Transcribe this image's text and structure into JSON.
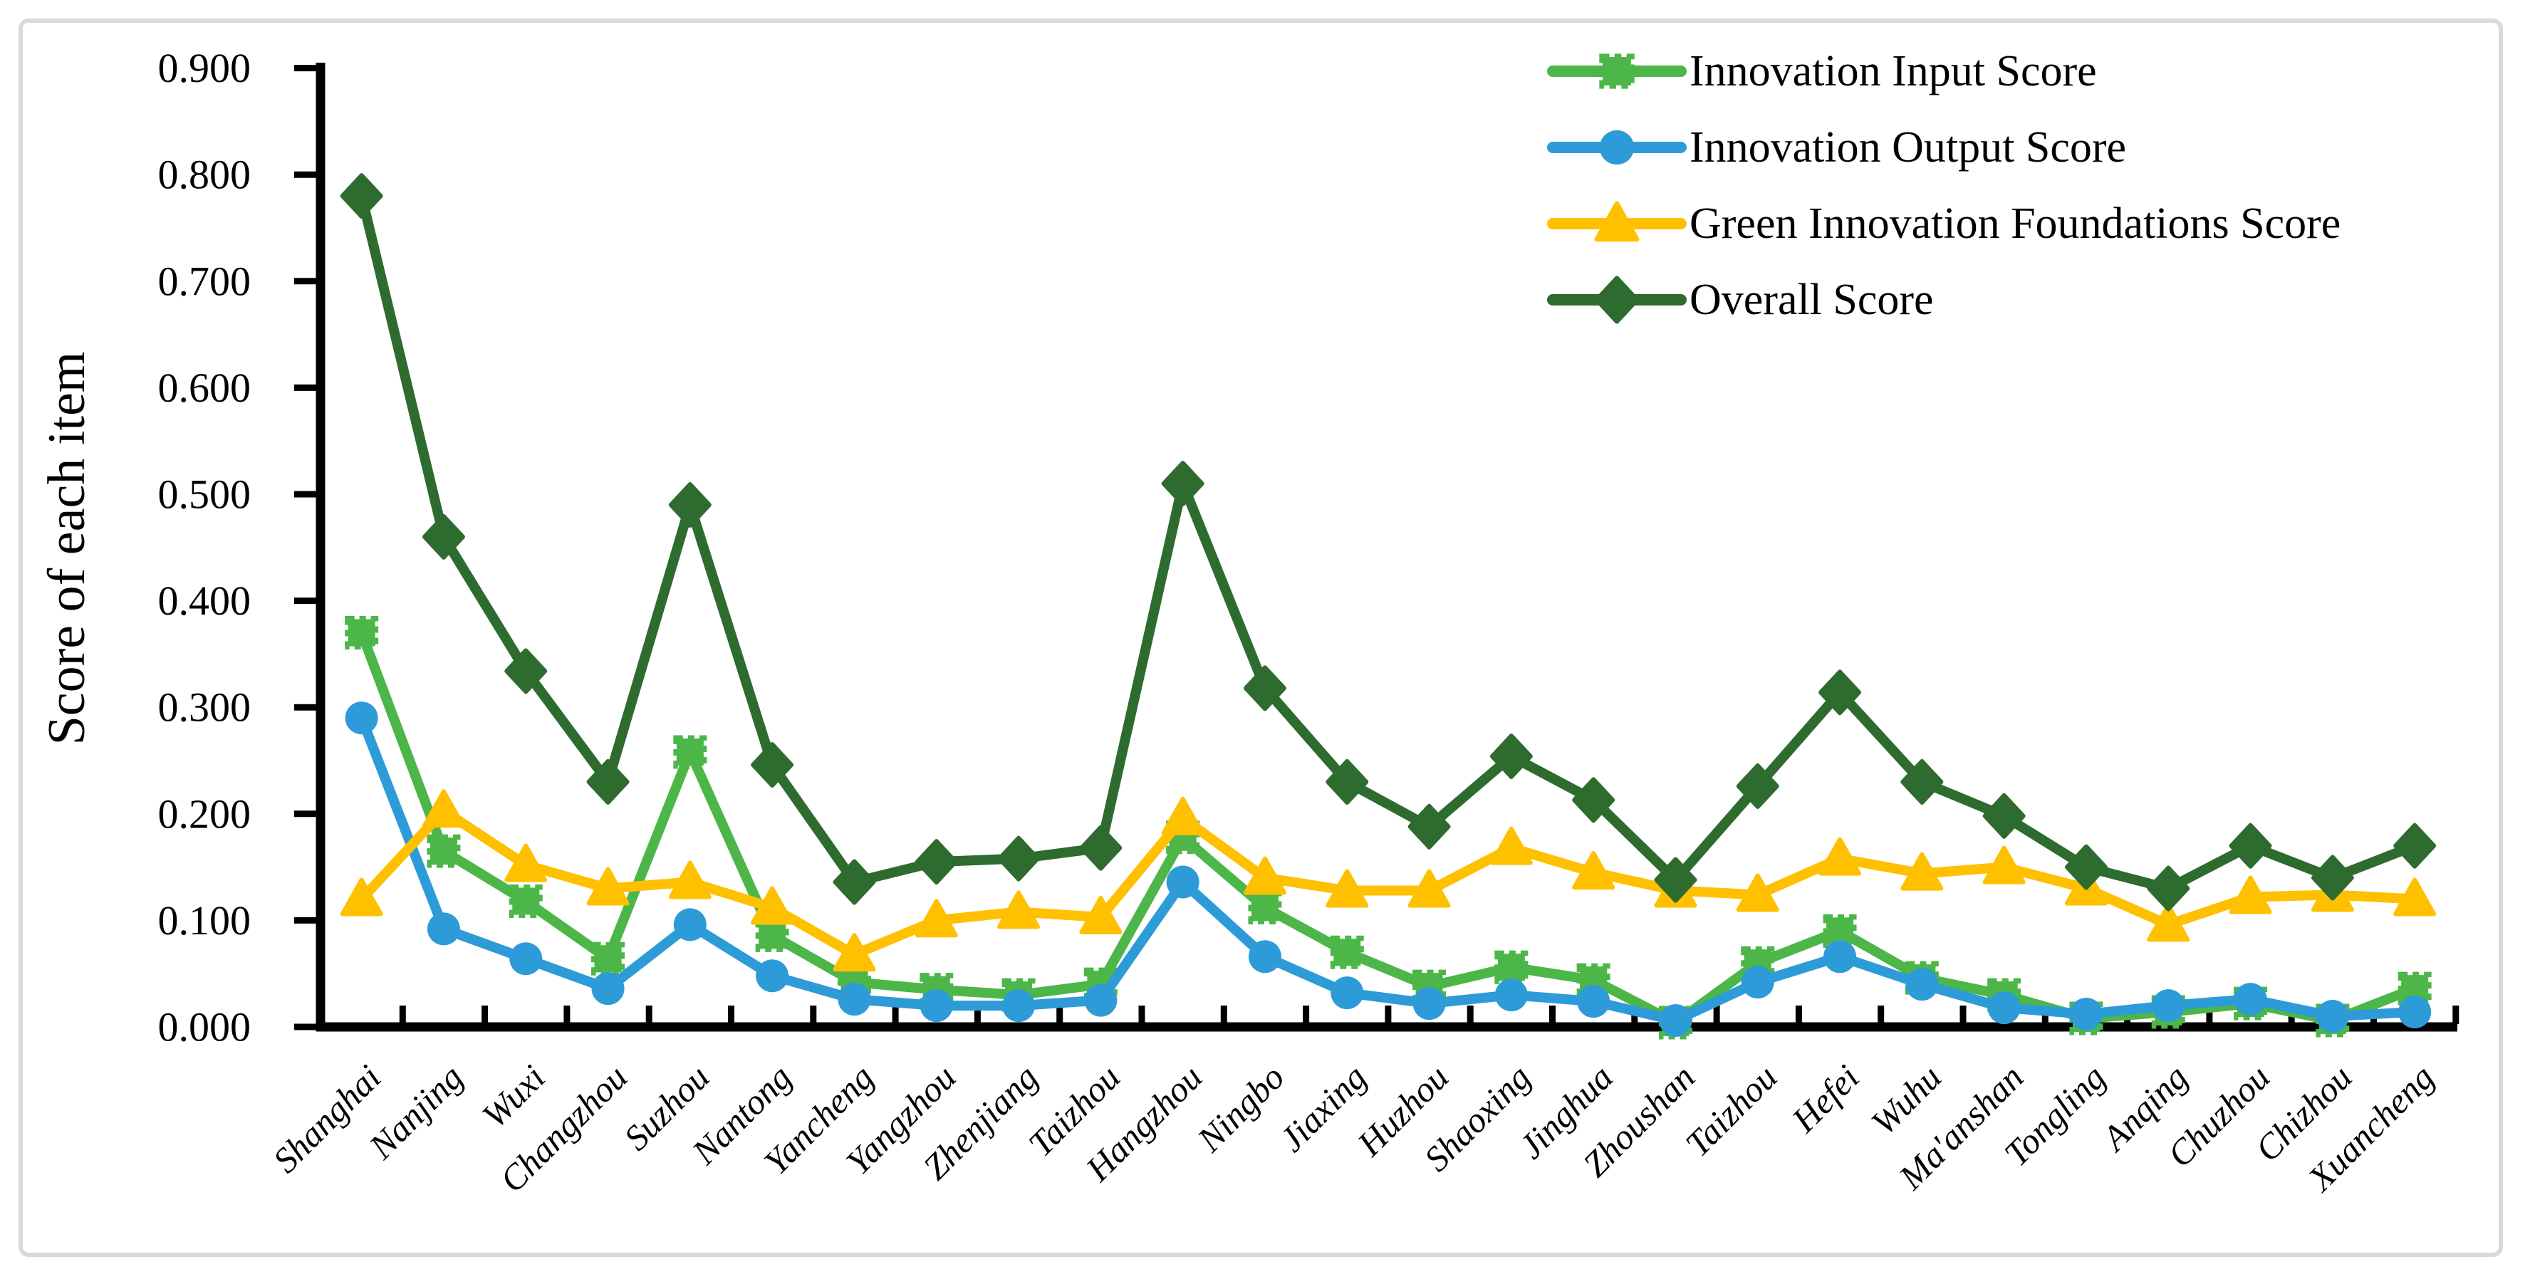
{
  "chart_data": {
    "type": "line",
    "ylabel": "Score of each item",
    "xlabel": "",
    "ylim": [
      0.0,
      0.9
    ],
    "ytick_step": 0.1,
    "ytick_labels": [
      "0.000",
      "0.100",
      "0.200",
      "0.300",
      "0.400",
      "0.500",
      "0.600",
      "0.700",
      "0.800",
      "0.900"
    ],
    "grid": false,
    "legend_position": "top-right",
    "categories": [
      "Shanghai",
      "Nanjing",
      "Wuxi",
      "Changzhou",
      "Suzhou",
      "Nantong",
      "Yancheng",
      "Yangzhou",
      "Zhenjiang",
      "Taizhou",
      "Hangzhou",
      "Ningbo",
      "Jiaxing",
      "Huzhou",
      "Shaoxing",
      "Jinghua",
      "Zhoushan",
      "Taizhou",
      "Hefei",
      "Wuhu",
      "Ma'anshan",
      "Tongling",
      "Anqing",
      "Chuzhou",
      "Chizhou",
      "Xuancheng"
    ],
    "series": [
      {
        "name": "Innovation Input Score",
        "marker": "square-x",
        "color": "#4CB648",
        "values": [
          0.37,
          0.165,
          0.118,
          0.064,
          0.258,
          0.086,
          0.042,
          0.035,
          0.03,
          0.04,
          0.178,
          0.112,
          0.07,
          0.038,
          0.056,
          0.044,
          0.004,
          0.06,
          0.09,
          0.046,
          0.03,
          0.008,
          0.014,
          0.022,
          0.006,
          0.036
        ]
      },
      {
        "name": "Innovation Output Score",
        "marker": "circle",
        "color": "#2D9BD7",
        "values": [
          0.29,
          0.092,
          0.064,
          0.036,
          0.096,
          0.048,
          0.026,
          0.02,
          0.02,
          0.025,
          0.136,
          0.066,
          0.032,
          0.022,
          0.03,
          0.024,
          0.006,
          0.042,
          0.066,
          0.04,
          0.018,
          0.012,
          0.02,
          0.026,
          0.01,
          0.014
        ]
      },
      {
        "name": "Green Innovation Foundations Score",
        "marker": "triangle",
        "color": "#FFC000",
        "values": [
          0.12,
          0.203,
          0.152,
          0.13,
          0.136,
          0.112,
          0.068,
          0.1,
          0.108,
          0.103,
          0.196,
          0.14,
          0.128,
          0.128,
          0.168,
          0.145,
          0.128,
          0.124,
          0.158,
          0.144,
          0.15,
          0.13,
          0.096,
          0.122,
          0.124,
          0.12
        ]
      },
      {
        "name": "Overall Score",
        "marker": "diamond",
        "color": "#2E6B2F",
        "values": [
          0.78,
          0.46,
          0.334,
          0.23,
          0.49,
          0.246,
          0.136,
          0.155,
          0.158,
          0.168,
          0.51,
          0.318,
          0.23,
          0.188,
          0.254,
          0.213,
          0.138,
          0.226,
          0.314,
          0.23,
          0.198,
          0.15,
          0.13,
          0.17,
          0.14,
          0.17
        ]
      }
    ]
  },
  "colors": {
    "axis": "#000000",
    "text": "#000000",
    "figure_border": "#D9D9D9",
    "background": "#FFFFFF"
  }
}
